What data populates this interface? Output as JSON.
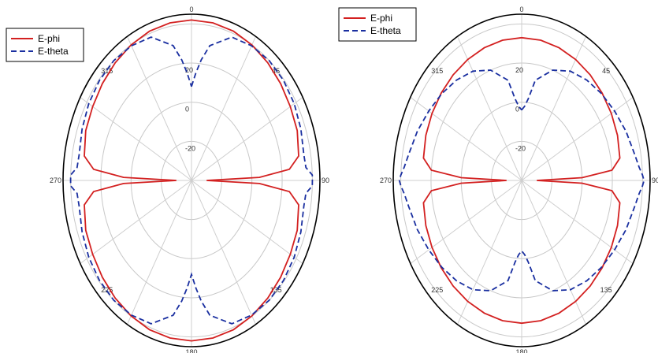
{
  "chart_data": [
    {
      "type": "polar-line",
      "angle_ticks": [
        "0",
        "45",
        "90",
        "135",
        "180",
        "225",
        "270",
        "315"
      ],
      "radial_ticks": [
        "20",
        "0",
        "-20"
      ],
      "legend": {
        "placement": "top-left"
      },
      "series": [
        {
          "name": "E-phi",
          "color": "#d32020",
          "style": "solid",
          "theta_deg": [
            0,
            10,
            20,
            30,
            40,
            50,
            60,
            70,
            80,
            85,
            88,
            90,
            92,
            95,
            100,
            110,
            120,
            130,
            140,
            150,
            160,
            170,
            180,
            190,
            200,
            210,
            220,
            230,
            240,
            250,
            260,
            265,
            268,
            270,
            272,
            275,
            280,
            290,
            300,
            310,
            320,
            330,
            340,
            350,
            360
          ],
          "r": [
            42,
            41.8,
            41.2,
            40,
            38.5,
            37,
            35.5,
            34.5,
            32,
            25,
            5,
            -30,
            5,
            25,
            32,
            34.5,
            35.5,
            37,
            38.5,
            40,
            41.2,
            41.8,
            42,
            41.8,
            41.2,
            40,
            38.5,
            37,
            35.5,
            34.5,
            32,
            25,
            5,
            -30,
            5,
            25,
            32,
            34.5,
            35.5,
            37,
            38.5,
            40,
            41.2,
            41.8,
            42
          ]
        },
        {
          "name": "E-theta",
          "color": "#1a2fa0",
          "style": "dashed",
          "theta_deg": [
            0,
            3,
            6,
            10,
            20,
            30,
            40,
            50,
            60,
            70,
            80,
            85,
            88,
            90,
            92,
            95,
            100,
            110,
            120,
            130,
            140,
            150,
            160,
            170,
            174,
            177,
            180,
            183,
            186,
            190,
            200,
            210,
            220,
            230,
            240,
            250,
            260,
            265,
            268,
            270,
            272,
            275,
            280,
            290,
            300,
            310,
            320,
            330,
            340,
            350,
            354,
            357,
            360
          ],
          "r": [
            8,
            15,
            22,
            30,
            38,
            39.5,
            40,
            39.5,
            38.5,
            37,
            35.5,
            36,
            40,
            40,
            40,
            36,
            35.5,
            37,
            38.5,
            39.5,
            40,
            39.5,
            38,
            30,
            22,
            15,
            8,
            15,
            22,
            30,
            38,
            39.5,
            40,
            39.5,
            38.5,
            37,
            35.5,
            36,
            40,
            40,
            40,
            36,
            35.5,
            37,
            38.5,
            39.5,
            40,
            39.5,
            38,
            30,
            22,
            15,
            8
          ]
        }
      ]
    },
    {
      "type": "polar-line",
      "angle_ticks": [
        "0",
        "45",
        "90",
        "135",
        "180",
        "225",
        "270",
        "315"
      ],
      "radial_ticks": [
        "20",
        "0",
        "-20"
      ],
      "legend": {
        "placement": "top-left"
      },
      "series": [
        {
          "name": "E-phi",
          "color": "#d32020",
          "style": "solid",
          "theta_deg": [
            0,
            10,
            20,
            30,
            40,
            50,
            60,
            70,
            80,
            85,
            88,
            90,
            92,
            95,
            100,
            110,
            120,
            130,
            140,
            150,
            160,
            170,
            180,
            190,
            200,
            210,
            220,
            230,
            240,
            250,
            260,
            265,
            268,
            270,
            272,
            275,
            280,
            290,
            300,
            310,
            320,
            330,
            340,
            350,
            360
          ],
          "r": [
            33,
            32.8,
            32.2,
            31.4,
            30.5,
            29.5,
            28.5,
            27.5,
            26,
            20,
            0,
            -30,
            0,
            20,
            26,
            27.5,
            28.5,
            29.5,
            30.5,
            31.4,
            32.2,
            32.8,
            33,
            32.8,
            32.2,
            31.4,
            30.5,
            29.5,
            28.5,
            27.5,
            26,
            20,
            0,
            -30,
            0,
            20,
            26,
            27.5,
            28.5,
            29.5,
            30.5,
            31.4,
            32.2,
            32.8,
            33
          ],
          "r_scale": 1.18
        },
        {
          "name": "E-theta",
          "color": "#1a2fa0",
          "style": "dashed",
          "theta_deg": [
            0,
            3,
            6,
            10,
            20,
            30,
            40,
            50,
            60,
            70,
            80,
            85,
            88,
            90,
            92,
            95,
            100,
            110,
            120,
            130,
            140,
            150,
            160,
            170,
            174,
            177,
            180,
            183,
            186,
            190,
            200,
            210,
            220,
            230,
            240,
            250,
            260,
            265,
            268,
            270,
            272,
            275,
            280,
            290,
            300,
            310,
            320,
            330,
            340,
            350,
            354,
            357,
            360
          ],
          "r": [
            -4,
            -2,
            2,
            12,
            20,
            24.5,
            27,
            29,
            31,
            33.5,
            36,
            38,
            40,
            41,
            40,
            38,
            36,
            33.5,
            31,
            29,
            27,
            24.5,
            20,
            12,
            2,
            -2,
            -4,
            -2,
            2,
            12,
            20,
            24.5,
            27,
            29,
            31,
            33.5,
            36,
            38,
            40,
            41,
            40,
            38,
            36,
            33.5,
            31,
            29,
            27,
            24.5,
            20,
            12,
            2,
            -2,
            -4
          ],
          "r_scale": 1.0
        }
      ]
    }
  ]
}
